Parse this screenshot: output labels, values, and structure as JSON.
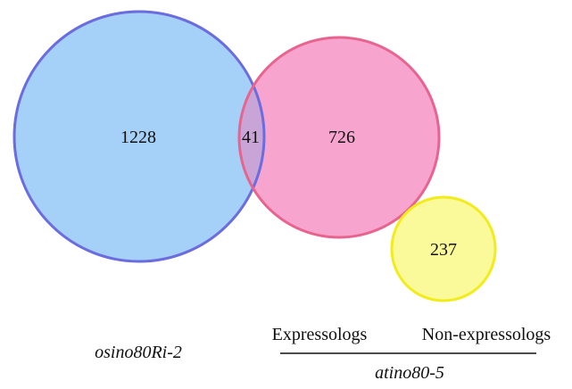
{
  "sets": [
    {
      "name": "osino80Ri-2",
      "count": "1228",
      "fill": "#a5d0f7",
      "stroke": "#6b6ce0"
    },
    {
      "name": "Expressologs",
      "count": "726",
      "fill": "#f7a5cf",
      "stroke": "#e8648f"
    },
    {
      "name": "Non-expressologs",
      "count": "237",
      "fill": "#fbfa9a",
      "stroke": "#f2ec1c"
    }
  ],
  "overlap": {
    "count": "41",
    "fill": "#c8a5d6"
  },
  "labels": {
    "left": "osino80Ri-2",
    "group_expressologs": "Expressologs",
    "group_nonexpressologs": "Non-expressologs",
    "group_name": "atino80-5"
  }
}
